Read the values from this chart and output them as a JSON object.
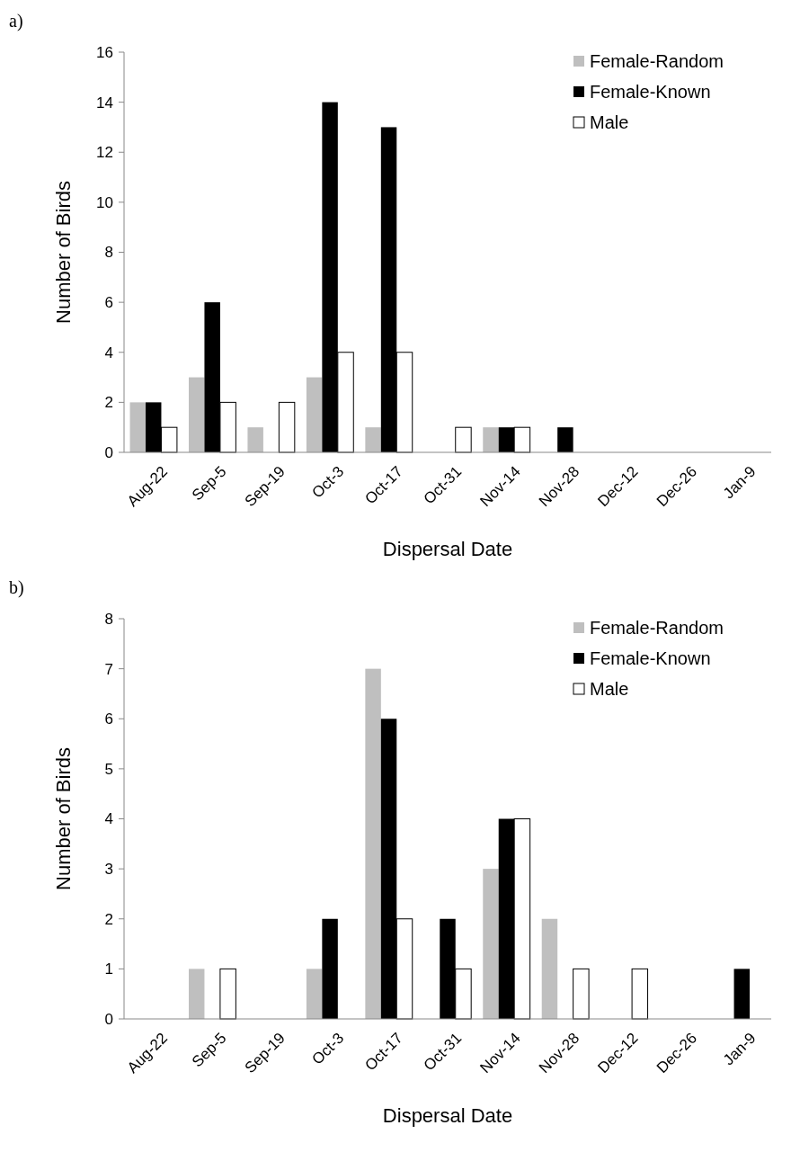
{
  "chart_data": [
    {
      "type": "bar",
      "annotations": [
        "a)"
      ],
      "xlabel": "Dispersal Date",
      "ylabel": "Number of Birds",
      "categories": [
        "Aug-22",
        "Sep-5",
        "Sep-19",
        "Oct-3",
        "Oct-17",
        "Oct-31",
        "Nov-14",
        "Nov-28",
        "Dec-12",
        "Dec-26",
        "Jan-9"
      ],
      "series": [
        {
          "name": "Female-Random",
          "color": "#bfbfbf",
          "values": [
            2,
            3,
            1,
            3,
            1,
            0,
            1,
            0,
            0,
            0,
            0
          ]
        },
        {
          "name": "Female-Known",
          "color": "#000000",
          "values": [
            2,
            6,
            0,
            14,
            13,
            0,
            1,
            1,
            0,
            0,
            0
          ]
        },
        {
          "name": "Male",
          "color": "#ffffff",
          "values": [
            1,
            2,
            2,
            4,
            4,
            1,
            1,
            0,
            0,
            0,
            0
          ]
        }
      ],
      "ylim": [
        0,
        16
      ],
      "yticks": [
        0,
        2,
        4,
        6,
        8,
        10,
        12,
        14,
        16
      ],
      "grid": false,
      "legend": "top right"
    },
    {
      "type": "bar",
      "annotations": [
        "b)"
      ],
      "xlabel": "Dispersal Date",
      "ylabel": "Number of Birds",
      "categories": [
        "Aug-22",
        "Sep-5",
        "Sep-19",
        "Oct-3",
        "Oct-17",
        "Oct-31",
        "Nov-14",
        "Nov-28",
        "Dec-12",
        "Dec-26",
        "Jan-9"
      ],
      "series": [
        {
          "name": "Female-Random",
          "color": "#bfbfbf",
          "values": [
            0,
            1,
            0,
            1,
            7,
            0,
            3,
            2,
            0,
            0,
            0
          ]
        },
        {
          "name": "Female-Known",
          "color": "#000000",
          "values": [
            0,
            0,
            0,
            2,
            6,
            2,
            4,
            0,
            0,
            0,
            1
          ]
        },
        {
          "name": "Male",
          "color": "#ffffff",
          "values": [
            0,
            1,
            0,
            0,
            2,
            1,
            4,
            1,
            1,
            0,
            0
          ]
        }
      ],
      "ylim": [
        0,
        8
      ],
      "yticks": [
        0,
        1,
        2,
        3,
        4,
        5,
        6,
        7,
        8
      ],
      "grid": false,
      "legend": "top right"
    }
  ]
}
